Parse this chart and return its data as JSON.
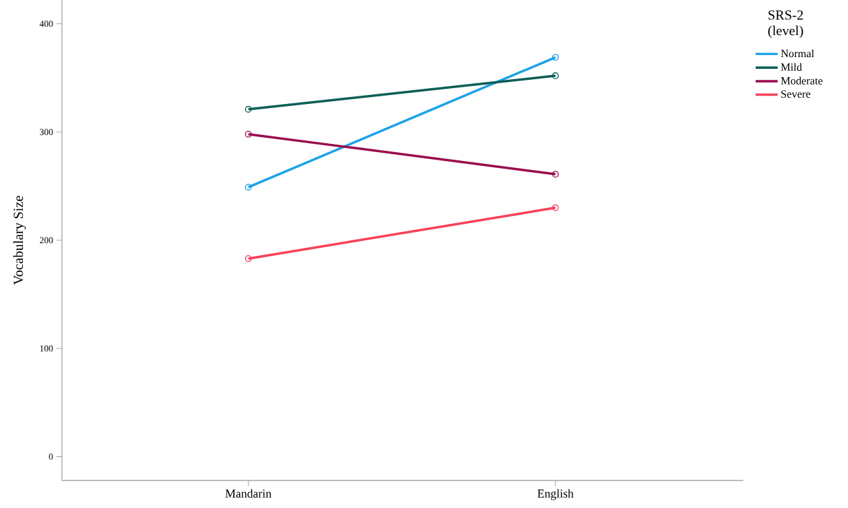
{
  "chart_data": {
    "type": "line",
    "ylabel": "Vocabulary Size",
    "legend_title": "SRS-2 (level)",
    "categories": [
      "Mandarin",
      "English"
    ],
    "series": [
      {
        "name": "Normal",
        "color": "#1ba1e8",
        "values": [
          249,
          369
        ]
      },
      {
        "name": "Mild",
        "color": "#0d5f57",
        "values": [
          321,
          352
        ]
      },
      {
        "name": "Moderate",
        "color": "#9b0b4f",
        "values": [
          298,
          261
        ]
      },
      {
        "name": "Severe",
        "color": "#f9405a",
        "values": [
          183,
          230
        ]
      }
    ],
    "ylim": [
      -22,
      422
    ],
    "yticks": [
      0,
      100,
      200,
      300,
      400
    ],
    "marker": "circle",
    "line_style": "solid",
    "grid": false,
    "legend": "right"
  }
}
